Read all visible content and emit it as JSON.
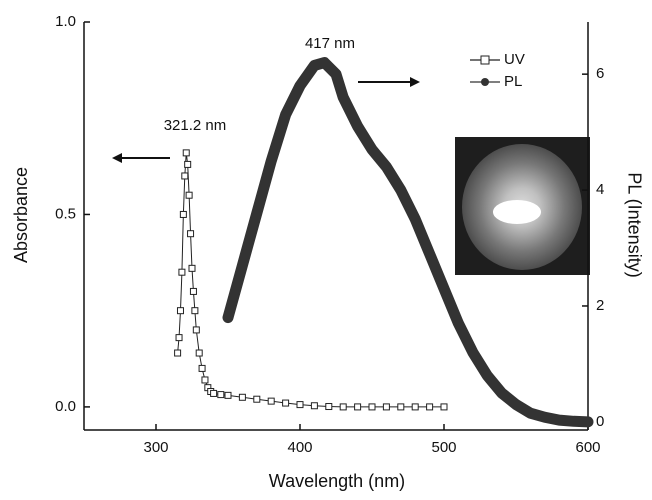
{
  "chart_data": {
    "type": "line",
    "xlabel": "Wavelength (nm)",
    "ylabel": "Absorbance",
    "y2label": "PL (Intensity)",
    "xlim": [
      250,
      600
    ],
    "xticks": [
      300,
      400,
      500,
      600
    ],
    "ylim": [
      -0.06,
      1.0
    ],
    "yticks": [
      {
        "value": 0,
        "label": "0.0"
      },
      0.5,
      {
        "value": 1,
        "label": "1.0"
      }
    ],
    "y2lim": [
      -0.14,
      6.9
    ],
    "y2ticks": [
      0,
      2,
      4,
      6
    ],
    "annotations": [
      "321.2 nm",
      "417 nm"
    ],
    "legend": "upper right",
    "series": [
      {
        "name": "UV",
        "color": "#222222",
        "marker": "square",
        "x": [
          315,
          316,
          317,
          318,
          319,
          320,
          321,
          322,
          323,
          324,
          325,
          326,
          327,
          328,
          330,
          332,
          334,
          336,
          338,
          340,
          345,
          350,
          360,
          370,
          380,
          390,
          400,
          410,
          420,
          430,
          440,
          450,
          460,
          470,
          480,
          490,
          500
        ],
        "values": [
          0.14,
          0.18,
          0.25,
          0.35,
          0.5,
          0.6,
          0.66,
          0.63,
          0.55,
          0.45,
          0.36,
          0.3,
          0.25,
          0.2,
          0.14,
          0.1,
          0.07,
          0.05,
          0.04,
          0.035,
          0.032,
          0.03,
          0.025,
          0.02,
          0.015,
          0.01,
          0.006,
          0.003,
          0.001,
          0,
          0,
          0,
          0,
          0,
          0,
          0,
          0
        ]
      },
      {
        "name": "PL",
        "color": "#333333",
        "marker": "circle",
        "axis": "y2",
        "x": [
          350,
          360,
          370,
          380,
          390,
          400,
          410,
          417,
          425,
          430,
          440,
          450,
          460,
          470,
          480,
          490,
          500,
          510,
          520,
          530,
          540,
          550,
          560,
          570,
          580,
          590,
          600
        ],
        "values": [
          1.8,
          2.7,
          3.6,
          4.5,
          5.3,
          5.8,
          6.15,
          6.2,
          6.0,
          5.6,
          5.1,
          4.7,
          4.4,
          4.0,
          3.5,
          2.9,
          2.3,
          1.7,
          1.2,
          0.8,
          0.5,
          0.3,
          0.15,
          0.08,
          0.03,
          0.01,
          0
        ]
      }
    ]
  }
}
